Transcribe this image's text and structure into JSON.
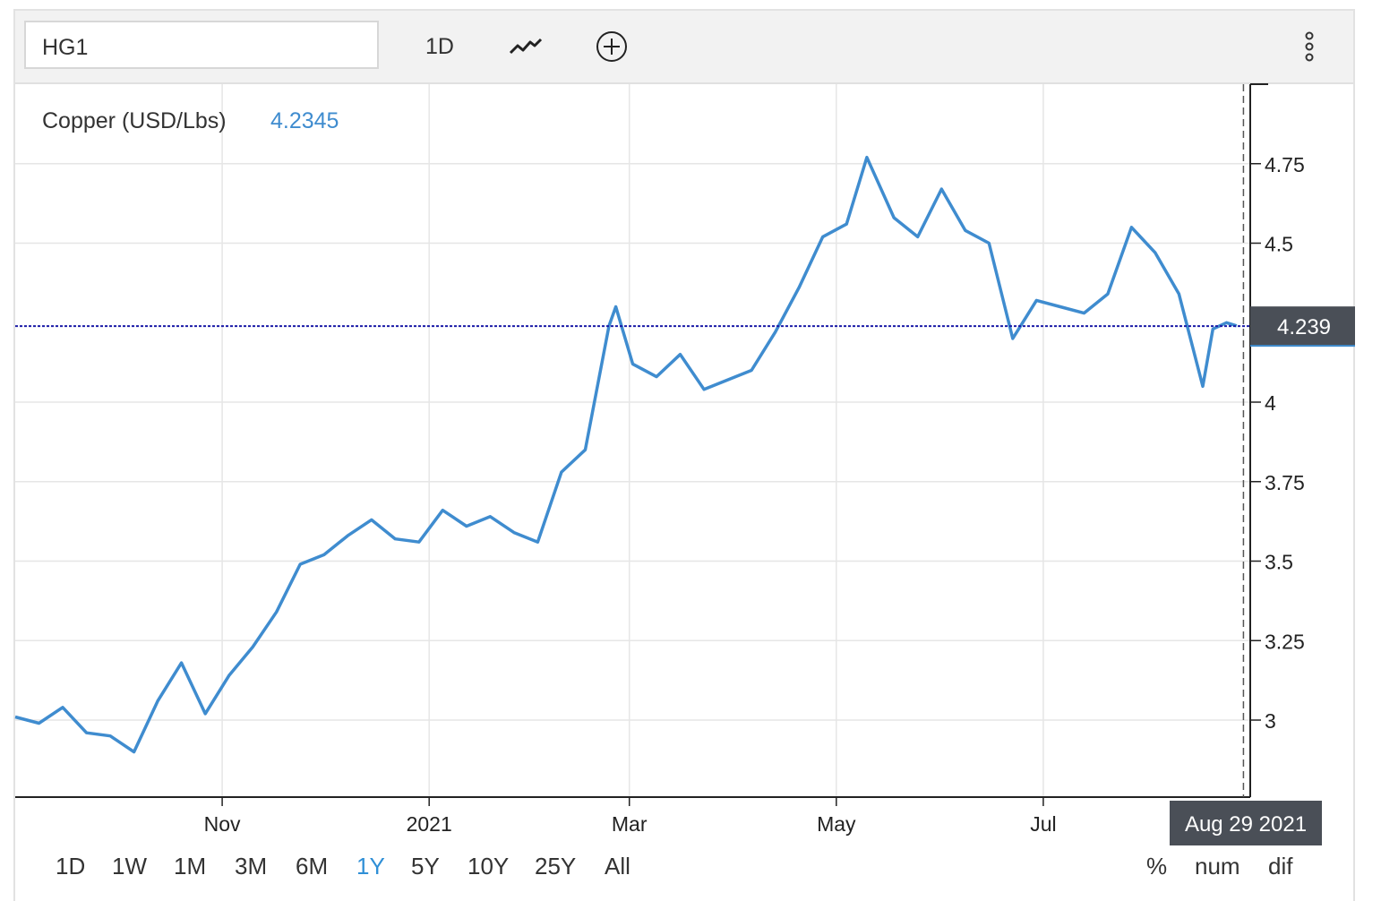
{
  "toolbar": {
    "symbol": "HG1",
    "interval_label": "1D",
    "chart_type_icon": "line-chart-icon",
    "add_icon": "plus-circle-icon",
    "menu_icon": "vertical-dots-icon"
  },
  "colors": {
    "series": "#3f8ccf",
    "last_price_line": "#1c1ca8",
    "crosshair": "#555555",
    "tooltip_bg": "#4a4f57",
    "grid": "#e6e6e6",
    "accent": "#2f8fd6"
  },
  "crosshair_label": "Aug 29 2021",
  "last_price_label": "4.239",
  "ranges": [
    {
      "label": "1D",
      "active": false
    },
    {
      "label": "1W",
      "active": false
    },
    {
      "label": "1M",
      "active": false
    },
    {
      "label": "3M",
      "active": false
    },
    {
      "label": "6M",
      "active": false
    },
    {
      "label": "1Y",
      "active": true
    },
    {
      "label": "5Y",
      "active": false
    },
    {
      "label": "10Y",
      "active": false
    },
    {
      "label": "25Y",
      "active": false
    },
    {
      "label": "All",
      "active": false
    }
  ],
  "modes": [
    "%",
    "num",
    "dif"
  ],
  "chart_data": {
    "type": "line",
    "series": [
      {
        "name": "Copper (USD/Lbs)",
        "last_value": "4.2345",
        "x": [
          "2020-09-01",
          "2020-09-08",
          "2020-09-15",
          "2020-09-22",
          "2020-09-29",
          "2020-10-06",
          "2020-10-13",
          "2020-10-20",
          "2020-10-27",
          "2020-11-03",
          "2020-11-10",
          "2020-11-17",
          "2020-11-24",
          "2020-12-01",
          "2020-12-08",
          "2020-12-15",
          "2020-12-22",
          "2020-12-29",
          "2021-01-05",
          "2021-01-12",
          "2021-01-19",
          "2021-01-26",
          "2021-02-02",
          "2021-02-09",
          "2021-02-16",
          "2021-02-23",
          "2021-02-25",
          "2021-03-02",
          "2021-03-09",
          "2021-03-16",
          "2021-03-23",
          "2021-03-30",
          "2021-04-06",
          "2021-04-13",
          "2021-04-20",
          "2021-04-27",
          "2021-05-04",
          "2021-05-10",
          "2021-05-18",
          "2021-05-25",
          "2021-06-01",
          "2021-06-08",
          "2021-06-15",
          "2021-06-22",
          "2021-06-29",
          "2021-07-06",
          "2021-07-13",
          "2021-07-20",
          "2021-07-27",
          "2021-08-03",
          "2021-08-10",
          "2021-08-17",
          "2021-08-20",
          "2021-08-24",
          "2021-08-27"
        ],
        "y": [
          3.01,
          2.99,
          3.04,
          2.96,
          2.95,
          2.9,
          3.06,
          3.18,
          3.02,
          3.14,
          3.23,
          3.34,
          3.49,
          3.52,
          3.58,
          3.63,
          3.57,
          3.56,
          3.66,
          3.61,
          3.64,
          3.59,
          3.56,
          3.78,
          3.85,
          4.24,
          4.3,
          4.12,
          4.08,
          4.15,
          4.04,
          4.07,
          4.1,
          4.22,
          4.36,
          4.52,
          4.56,
          4.77,
          4.58,
          4.52,
          4.67,
          4.54,
          4.5,
          4.2,
          4.32,
          4.3,
          4.28,
          4.34,
          4.55,
          4.47,
          4.34,
          4.05,
          4.23,
          4.25,
          4.24
        ]
      }
    ],
    "x_tick_labels": [
      "Nov",
      "2021",
      "Mar",
      "May",
      "Jul"
    ],
    "x_tick_dates": [
      "2020-11-01",
      "2021-01-01",
      "2021-03-01",
      "2021-05-01",
      "2021-07-01"
    ],
    "y_ticks": [
      3,
      3.25,
      3.5,
      3.75,
      4,
      4.5,
      4.75
    ],
    "y_tick_labels": [
      "3",
      "3.25",
      "3.5",
      "3.75",
      "4",
      "4.5",
      "4.75"
    ],
    "ylim": [
      2.75,
      5.0
    ],
    "xlim": [
      "2020-09-01",
      "2021-08-31"
    ],
    "crosshair_date": "2021-08-29",
    "last_price": 4.239,
    "grid": true,
    "legend": "top-left"
  }
}
